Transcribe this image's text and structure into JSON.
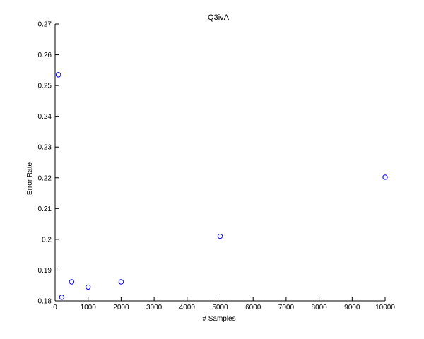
{
  "chart_data": {
    "type": "scatter",
    "title": "Q3ivA",
    "xlabel": "# Samples",
    "ylabel": "Error Rate",
    "xlim": [
      0,
      10000
    ],
    "ylim": [
      0.18,
      0.27
    ],
    "xticks": [
      0,
      1000,
      2000,
      3000,
      4000,
      5000,
      6000,
      7000,
      8000,
      9000,
      10000
    ],
    "xtick_labels": [
      "0",
      "1000",
      "2000",
      "3000",
      "4000",
      "5000",
      "6000",
      "7000",
      "8000",
      "9000",
      "10000"
    ],
    "yticks": [
      0.18,
      0.19,
      0.2,
      0.21,
      0.22,
      0.23,
      0.24,
      0.25,
      0.26,
      0.27
    ],
    "ytick_labels": [
      "0.18",
      "0.19",
      "0.2",
      "0.21",
      "0.22",
      "0.23",
      "0.24",
      "0.25",
      "0.26",
      "0.27"
    ],
    "grid": false,
    "marker": "open circle",
    "marker_color": "#0000ff",
    "series": [
      {
        "x": [
          100,
          200,
          500,
          1000,
          2000,
          5000,
          10000
        ],
        "y": [
          0.2535,
          0.1812,
          0.1862,
          0.1845,
          0.1862,
          0.201,
          0.2202
        ]
      }
    ]
  }
}
